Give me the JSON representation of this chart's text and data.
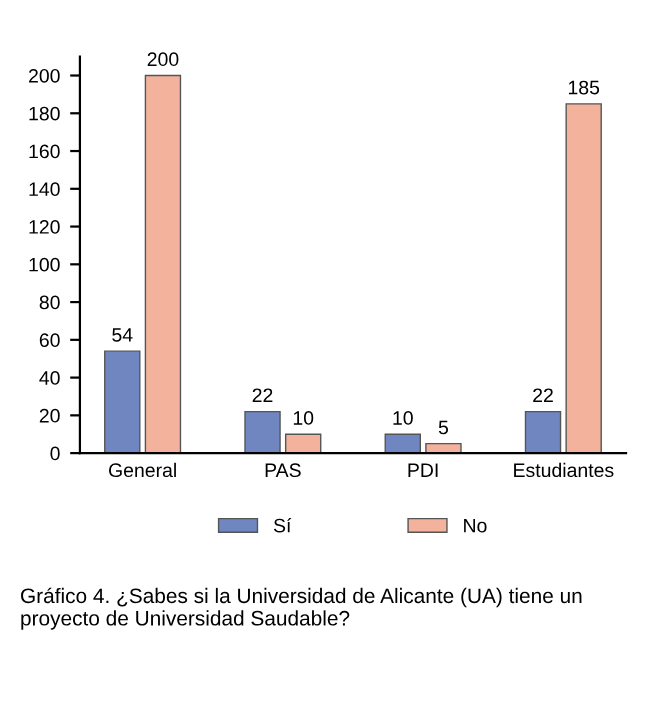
{
  "chart_data": {
    "type": "bar",
    "categories": [
      "General",
      "PAS",
      "PDI",
      "Estudiantes"
    ],
    "series": [
      {
        "name": "Sí",
        "color": "#6f86c0",
        "values": [
          54,
          22,
          10,
          22
        ]
      },
      {
        "name": "No",
        "color": "#f2b29c",
        "values": [
          200,
          10,
          5,
          185
        ]
      }
    ],
    "ylim": [
      0,
      210
    ],
    "yticks": [
      0,
      20,
      40,
      60,
      80,
      100,
      120,
      140,
      160,
      180,
      200
    ],
    "data_labels": true,
    "legend": "bottom",
    "grid": false,
    "annotations": [
      "Gráfico 4. ¿Sabes si la Universidad de Alicante (UA) tiene un proyecto de Universidad Saudable?"
    ]
  }
}
